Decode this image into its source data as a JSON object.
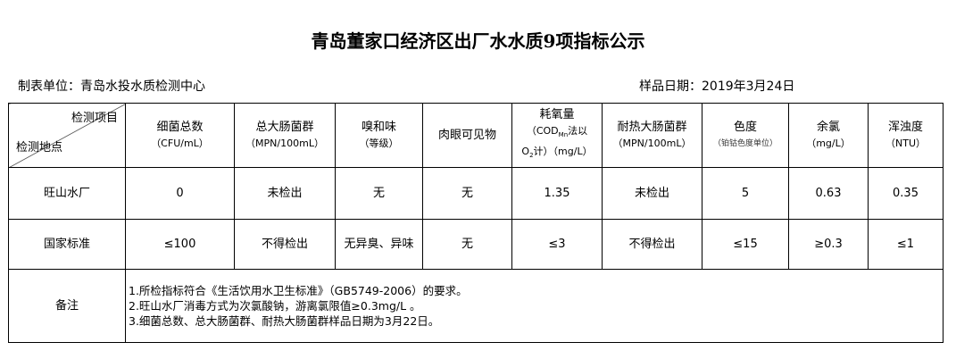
{
  "title": "青岛董家口经济区出厂水水质9项指标公示",
  "unit": "制表单位：青岛水投水质检测中心",
  "date": "样品日期：2019年3月24日",
  "header": {
    "item": "检测项目",
    "site": "检测地点",
    "cols": [
      {
        "name": "细菌总数",
        "unit": "（CFU/mL）"
      },
      {
        "name": "总大肠菌群",
        "unit": "（MPN/100mL）"
      },
      {
        "name": "嗅和味",
        "unit": "（等级）"
      },
      {
        "name": "肉眼可见物",
        "unit": ""
      },
      {
        "name": "耗氧量",
        "unit": "（COD",
        "sub": "Mn",
        "unit2": "法以",
        "unit3": "O",
        "sub2": "2",
        "unit4": "计）（mg/L）"
      },
      {
        "name": "耐热大肠菌群",
        "unit": "（MPN/100mL）"
      },
      {
        "name": "色度",
        "unit": "（铂钴色度单位）"
      },
      {
        "name": "余氯",
        "unit": "（mg/L）"
      },
      {
        "name": "浑浊度",
        "unit": "（NTU）"
      }
    ]
  },
  "rows": [
    {
      "label": "旺山水厂",
      "values": [
        "0",
        "未检出",
        "无",
        "无",
        "1.35",
        "未检出",
        "5",
        "0.63",
        "0.35"
      ]
    },
    {
      "label": "国家标准",
      "values": [
        "≤100",
        "不得检出",
        "无异臭、异味",
        "无",
        "≤3",
        "不得检出",
        "≤15",
        "≥0.3",
        "≤1"
      ]
    }
  ],
  "remarks": {
    "label": "备注",
    "lines": [
      "1.所检指标符合《生活饮用水卫生标准》（GB5749-2006）的要求。",
      "2.旺山水厂消毒方式为次氯酸钠，游离氯限值≥0.3mg/L 。",
      "3.细菌总数、总大肠菌群、耐热大肠菌群样品日期为3月22日。"
    ]
  }
}
